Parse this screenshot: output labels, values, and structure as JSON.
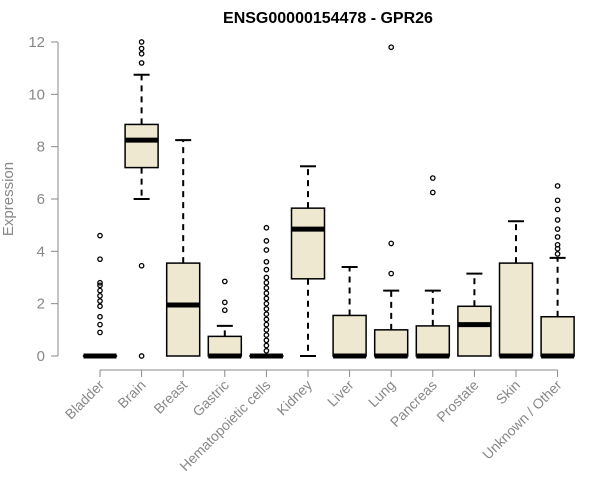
{
  "chart_data": {
    "type": "boxplot",
    "title": "ENSG00000154478 - GPR26",
    "xlabel": "",
    "ylabel": "Expression",
    "ylim": [
      0,
      12
    ],
    "yticks": [
      "0",
      "2",
      "4",
      "6",
      "8",
      "10",
      "12"
    ],
    "grid": false,
    "colors": {
      "box_fill": "#efe8d0",
      "stroke": "#000000",
      "axis": "#888888"
    },
    "categories": [
      "Bladder",
      "Brain",
      "Breast",
      "Gastric",
      "Hematopoietic cells",
      "Kidney",
      "Liver",
      "Lung",
      "Pancreas",
      "Prostate",
      "Skin",
      "Unknown / Other"
    ],
    "boxes": [
      {
        "q1": 0,
        "median": 0,
        "q3": 0,
        "whisker_low": 0,
        "whisker_high": 0,
        "outliers": [
          0.9,
          1.2,
          1.5,
          1.9,
          2.1,
          2.3,
          2.5,
          2.7,
          2.8,
          3.7,
          4.6
        ]
      },
      {
        "q1": 7.2,
        "median": 8.25,
        "q3": 8.85,
        "whisker_low": 6.0,
        "whisker_high": 10.75,
        "outliers": [
          0.0,
          3.45,
          11.2,
          11.55,
          11.75,
          12.0
        ]
      },
      {
        "q1": 0,
        "median": 1.95,
        "q3": 3.55,
        "whisker_low": 0,
        "whisker_high": 8.25,
        "outliers": []
      },
      {
        "q1": 0,
        "median": 0,
        "q3": 0.75,
        "whisker_low": 0,
        "whisker_high": 1.15,
        "outliers": [
          1.75,
          2.05,
          2.85
        ]
      },
      {
        "q1": 0,
        "median": 0,
        "q3": 0,
        "whisker_low": 0,
        "whisker_high": 0,
        "outliers": [
          0.2,
          0.4,
          0.6,
          0.8,
          1.0,
          1.2,
          1.4,
          1.6,
          1.8,
          2.0,
          2.2,
          2.4,
          2.6,
          2.8,
          3.0,
          3.3,
          3.6,
          4.05,
          4.4,
          4.9
        ]
      },
      {
        "q1": 2.95,
        "median": 4.85,
        "q3": 5.65,
        "whisker_low": 0,
        "whisker_high": 7.25,
        "outliers": []
      },
      {
        "q1": 0,
        "median": 0,
        "q3": 1.55,
        "whisker_low": 0,
        "whisker_high": 3.4,
        "outliers": []
      },
      {
        "q1": 0,
        "median": 0,
        "q3": 1.0,
        "whisker_low": 0,
        "whisker_high": 2.5,
        "outliers": [
          3.15,
          4.3,
          11.8
        ]
      },
      {
        "q1": 0,
        "median": 0,
        "q3": 1.15,
        "whisker_low": 0,
        "whisker_high": 2.5,
        "outliers": [
          6.25,
          6.8
        ]
      },
      {
        "q1": 0,
        "median": 1.2,
        "q3": 1.9,
        "whisker_low": 0,
        "whisker_high": 3.15,
        "outliers": []
      },
      {
        "q1": 0,
        "median": 0,
        "q3": 3.55,
        "whisker_low": 0,
        "whisker_high": 5.15,
        "outliers": []
      },
      {
        "q1": 0,
        "median": 0,
        "q3": 1.5,
        "whisker_low": 0,
        "whisker_high": 3.75,
        "outliers": [
          3.9,
          4.1,
          4.25,
          4.55,
          4.85,
          5.2,
          5.6,
          5.95,
          6.5
        ]
      }
    ]
  }
}
